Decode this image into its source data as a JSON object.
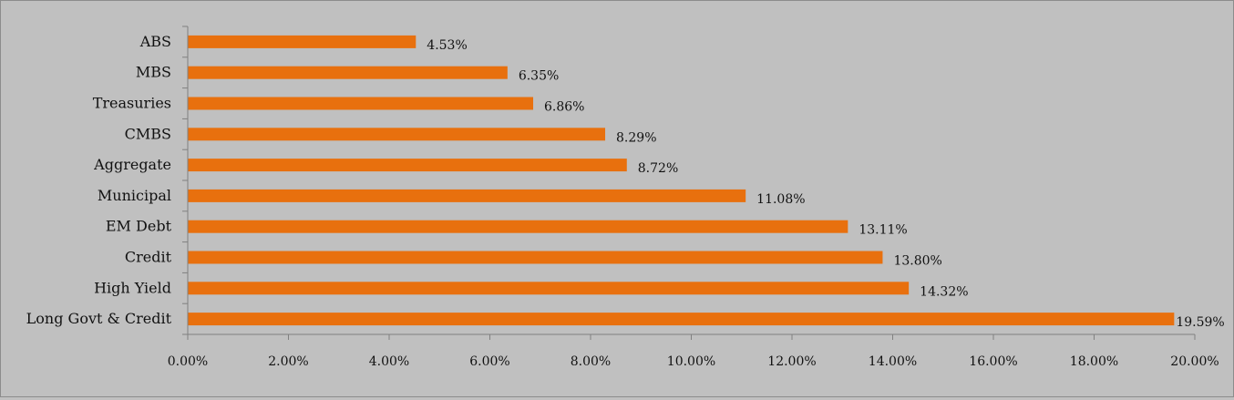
{
  "chart_data": {
    "type": "bar",
    "orientation": "horizontal",
    "categories": [
      "ABS",
      "MBS",
      "Treasuries",
      "CMBS",
      "Aggregate",
      "Municipal",
      "EM Debt",
      "Credit",
      "High Yield",
      "Long Govt & Credit"
    ],
    "values": [
      4.53,
      6.35,
      6.86,
      8.29,
      8.72,
      11.08,
      13.11,
      13.8,
      14.32,
      19.59
    ],
    "data_labels": [
      "4.53%",
      "6.35%",
      "6.86%",
      "8.29%",
      "8.72%",
      "11.08%",
      "13.11%",
      "13.80%",
      "14.32%",
      "19.59%"
    ],
    "x_ticks": [
      "0.00%",
      "2.00%",
      "4.00%",
      "6.00%",
      "8.00%",
      "10.00%",
      "12.00%",
      "14.00%",
      "16.00%",
      "18.00%",
      "20.00%"
    ],
    "xlim": [
      0,
      20
    ],
    "title": "",
    "xlabel": "",
    "ylabel": "",
    "grid": false,
    "legend": "none",
    "colors": {
      "bar": "#e8700e",
      "background": "#c0c0c0",
      "axis": "#808080"
    }
  }
}
